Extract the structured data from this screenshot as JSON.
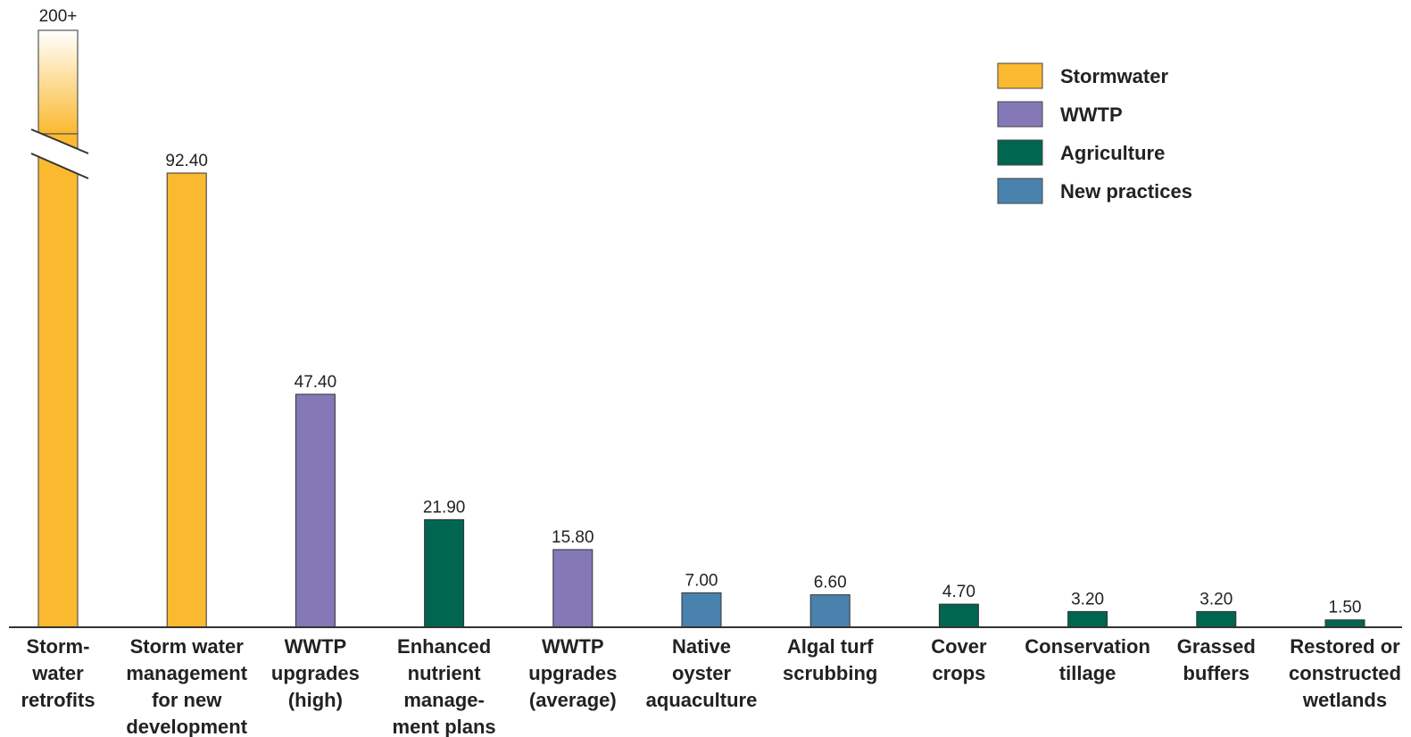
{
  "chart_data": {
    "type": "bar",
    "title": "",
    "xlabel": "",
    "ylabel": "",
    "ylim": [
      0,
      105
    ],
    "grid": false,
    "legend_position": "top-right",
    "categories": [
      [
        "Storm-",
        "water",
        "retrofits"
      ],
      [
        "Storm water",
        "management",
        "for new",
        "development"
      ],
      [
        "WWTP",
        "upgrades",
        "(high)"
      ],
      [
        "Enhanced",
        "nutrient",
        "manage-",
        "ment plans"
      ],
      [
        "WWTP",
        "upgrades",
        "(average)"
      ],
      [
        "Native",
        "oyster",
        "aquaculture"
      ],
      [
        "Algal turf",
        "scrubbing"
      ],
      [
        "Cover",
        "crops"
      ],
      [
        "Conservation",
        "tillage"
      ],
      [
        "Grassed",
        "buffers"
      ],
      [
        "Restored or",
        "constructed",
        "wetlands"
      ]
    ],
    "values": [
      200,
      92.4,
      47.4,
      21.9,
      15.8,
      7.0,
      6.6,
      4.7,
      3.2,
      3.2,
      1.5
    ],
    "value_labels": [
      "200+",
      "92.40",
      "47.40",
      "21.90",
      "15.80",
      "7.00",
      "6.60",
      "4.70",
      "3.20",
      "3.20",
      "1.50"
    ],
    "groups": [
      "stormwater",
      "stormwater",
      "wwtp",
      "agriculture",
      "wwtp",
      "new",
      "new",
      "agriculture",
      "agriculture",
      "agriculture",
      "agriculture"
    ],
    "axis_break": {
      "bar_index": 0,
      "note": "bar exceeds axis; truncated with break"
    },
    "legend": [
      {
        "key": "stormwater",
        "label": "Stormwater",
        "color": "#FBB92F"
      },
      {
        "key": "wwtp",
        "label": "WWTP",
        "color": "#8478B6"
      },
      {
        "key": "agriculture",
        "label": "Agriculture",
        "color": "#006650"
      },
      {
        "key": "new",
        "label": "New practices",
        "color": "#4A82AE"
      }
    ]
  }
}
